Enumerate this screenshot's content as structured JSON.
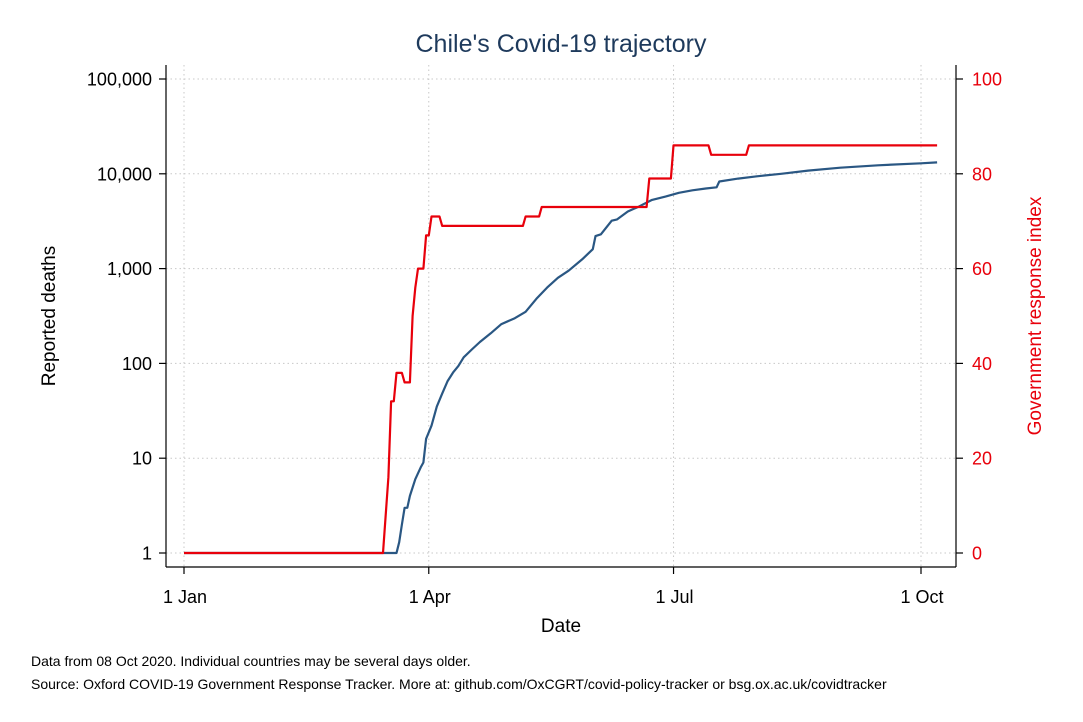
{
  "chart_data": {
    "type": "line",
    "title": "Chile's Covid-19 trajectory",
    "xlabel": "Date",
    "ylabel_left": "Reported deaths",
    "ylabel_right": "Government response index",
    "x_ticks": [
      {
        "date": "2020-01-01",
        "label": "1 Jan"
      },
      {
        "date": "2020-04-01",
        "label": "1 Apr"
      },
      {
        "date": "2020-07-01",
        "label": "1 Jul"
      },
      {
        "date": "2020-10-01",
        "label": "1 Oct"
      }
    ],
    "xlim": [
      "2020-01-01",
      "2020-10-05"
    ],
    "y_left_scale": "log",
    "y_left_lim": [
      1,
      100000
    ],
    "y_left_ticks": [
      {
        "value": 1,
        "label": "1"
      },
      {
        "value": 10,
        "label": "10"
      },
      {
        "value": 100,
        "label": "100"
      },
      {
        "value": 1000,
        "label": "1,000"
      },
      {
        "value": 10000,
        "label": "10,000"
      },
      {
        "value": 100000,
        "label": "100,000"
      }
    ],
    "y_right_lim": [
      0,
      100
    ],
    "y_right_ticks": [
      {
        "value": 0,
        "label": "0"
      },
      {
        "value": 20,
        "label": "20"
      },
      {
        "value": 40,
        "label": "40"
      },
      {
        "value": 60,
        "label": "60"
      },
      {
        "value": 80,
        "label": "80"
      },
      {
        "value": 100,
        "label": "100"
      }
    ],
    "grid": true,
    "series": [
      {
        "axis": "left",
        "color": "#2a5783",
        "points": [
          [
            "2020-01-01",
            1
          ],
          [
            "2020-03-20",
            1
          ],
          [
            "2020-03-21",
            1.3
          ],
          [
            "2020-03-22",
            2
          ],
          [
            "2020-03-23",
            3
          ],
          [
            "2020-03-24",
            3
          ],
          [
            "2020-03-25",
            4
          ],
          [
            "2020-03-27",
            6
          ],
          [
            "2020-03-29",
            8
          ],
          [
            "2020-03-30",
            9
          ],
          [
            "2020-03-31",
            16
          ],
          [
            "2020-04-02",
            22
          ],
          [
            "2020-04-04",
            35
          ],
          [
            "2020-04-06",
            48
          ],
          [
            "2020-04-08",
            65
          ],
          [
            "2020-04-10",
            80
          ],
          [
            "2020-04-12",
            94
          ],
          [
            "2020-04-14",
            116
          ],
          [
            "2020-04-17",
            140
          ],
          [
            "2020-04-20",
            168
          ],
          [
            "2020-04-24",
            207
          ],
          [
            "2020-04-28",
            260
          ],
          [
            "2020-05-03",
            300
          ],
          [
            "2020-05-07",
            350
          ],
          [
            "2020-05-11",
            480
          ],
          [
            "2020-05-15",
            630
          ],
          [
            "2020-05-19",
            800
          ],
          [
            "2020-05-23",
            950
          ],
          [
            "2020-05-28",
            1250
          ],
          [
            "2020-06-01",
            1600
          ],
          [
            "2020-06-02",
            2200
          ],
          [
            "2020-06-04",
            2300
          ],
          [
            "2020-06-08",
            3200
          ],
          [
            "2020-06-10",
            3300
          ],
          [
            "2020-06-14",
            4000
          ],
          [
            "2020-06-18",
            4500
          ],
          [
            "2020-06-23",
            5300
          ],
          [
            "2020-06-28",
            5750
          ],
          [
            "2020-07-03",
            6300
          ],
          [
            "2020-07-08",
            6700
          ],
          [
            "2020-07-13",
            7000
          ],
          [
            "2020-07-17",
            7200
          ],
          [
            "2020-07-18",
            8300
          ],
          [
            "2020-07-25",
            8900
          ],
          [
            "2020-08-01",
            9400
          ],
          [
            "2020-08-10",
            10000
          ],
          [
            "2020-08-20",
            10800
          ],
          [
            "2020-09-01",
            11600
          ],
          [
            "2020-09-15",
            12300
          ],
          [
            "2020-10-01",
            12900
          ],
          [
            "2020-10-07",
            13200
          ]
        ]
      },
      {
        "axis": "right",
        "color": "#e8000b",
        "points": [
          [
            "2020-01-01",
            0
          ],
          [
            "2020-03-15",
            0
          ],
          [
            "2020-03-16",
            8
          ],
          [
            "2020-03-17",
            16
          ],
          [
            "2020-03-18",
            32
          ],
          [
            "2020-03-19",
            32
          ],
          [
            "2020-03-20",
            38
          ],
          [
            "2020-03-22",
            38
          ],
          [
            "2020-03-23",
            36
          ],
          [
            "2020-03-25",
            36
          ],
          [
            "2020-03-26",
            50
          ],
          [
            "2020-03-27",
            56
          ],
          [
            "2020-03-28",
            60
          ],
          [
            "2020-03-30",
            60
          ],
          [
            "2020-03-31",
            67
          ],
          [
            "2020-04-01",
            67
          ],
          [
            "2020-04-02",
            71
          ],
          [
            "2020-04-05",
            71
          ],
          [
            "2020-04-06",
            69
          ],
          [
            "2020-05-06",
            69
          ],
          [
            "2020-05-07",
            71
          ],
          [
            "2020-05-12",
            71
          ],
          [
            "2020-05-13",
            73
          ],
          [
            "2020-06-21",
            73
          ],
          [
            "2020-06-22",
            79
          ],
          [
            "2020-06-30",
            79
          ],
          [
            "2020-07-01",
            86
          ],
          [
            "2020-07-14",
            86
          ],
          [
            "2020-07-15",
            84
          ],
          [
            "2020-07-28",
            84
          ],
          [
            "2020-07-29",
            86
          ],
          [
            "2020-10-07",
            86
          ]
        ]
      }
    ]
  },
  "footnotes": [
    "Data from 08 Oct 2020. Individual countries may be several days older.",
    "Source: Oxford COVID-19 Government Response Tracker. More at: github.com/OxCGRT/covid-policy-tracker or bsg.ox.ac.uk/covidtracker"
  ]
}
